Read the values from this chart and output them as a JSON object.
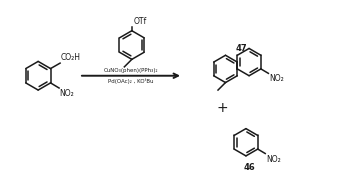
{
  "bg_color": "#ffffff",
  "line_color": "#1a1a1a",
  "figsize": [
    3.42,
    1.89
  ],
  "dpi": 100,
  "reagents_line1": "CuNO₃(phen)(PPh₃)₂",
  "reagents_line2": "Pd(OAc)₂ , KOᵗBu",
  "label_47": "47",
  "label_46": "46",
  "no2": "NO₂",
  "co2h": "CO₂H",
  "otf": "OTf"
}
